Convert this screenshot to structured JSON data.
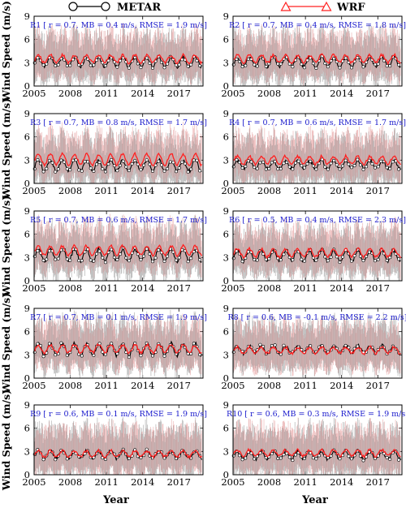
{
  "legend": {
    "metar_label": "METAR",
    "wrf_label": "WRF",
    "metar_color": "#000000",
    "wrf_color": "#ff2020"
  },
  "axes": {
    "xlabel": "Year",
    "ylabel": "Wind Speed (m/s)",
    "xticks": [
      "2005",
      "2008",
      "2011",
      "2014",
      "2017"
    ],
    "yticks": [
      "0",
      "3",
      "6",
      "9"
    ]
  },
  "chart_data": [
    {
      "type": "line",
      "panel": "R1",
      "annotation": "R1 [ r = 0.7, MB = 0.4 m/s, RMSE = 1.9 m/s]",
      "xlim": [
        2005,
        2019
      ],
      "ylim": [
        0,
        9
      ],
      "series": [
        {
          "name": "METAR",
          "mean": 3.1,
          "amplitude": 0.6
        },
        {
          "name": "WRF",
          "mean": 3.5,
          "amplitude": 0.5
        }
      ]
    },
    {
      "type": "line",
      "panel": "R2",
      "annotation": "R2 [ r = 0.7, MB = 0.4 m/s, RMSE = 1.8 m/s]",
      "xlim": [
        2005,
        2019
      ],
      "ylim": [
        0,
        9
      ],
      "series": [
        {
          "name": "METAR",
          "mean": 3.1,
          "amplitude": 0.6
        },
        {
          "name": "WRF",
          "mean": 3.5,
          "amplitude": 0.5
        }
      ]
    },
    {
      "type": "line",
      "panel": "R3",
      "annotation": "R3 [ r = 0.7, MB = 0.8 m/s, RMSE = 1.7 m/s]",
      "xlim": [
        2005,
        2019
      ],
      "ylim": [
        0,
        9
      ],
      "series": [
        {
          "name": "METAR",
          "mean": 2.3,
          "amplitude": 0.7
        },
        {
          "name": "WRF",
          "mean": 3.1,
          "amplitude": 0.7
        }
      ]
    },
    {
      "type": "line",
      "panel": "R4",
      "annotation": "R4 [ r = 0.7, MB = 0.6 m/s, RMSE = 1.7 m/s]",
      "xlim": [
        2005,
        2019
      ],
      "ylim": [
        0,
        9
      ],
      "series": [
        {
          "name": "METAR",
          "mean": 2.4,
          "amplitude": 0.5
        },
        {
          "name": "WRF",
          "mean": 3.0,
          "amplitude": 0.5
        }
      ]
    },
    {
      "type": "line",
      "panel": "R5",
      "annotation": "R5 [ r = 0.7, MB = 0.6 m/s, RMSE = 1.7 m/s]",
      "xlim": [
        2005,
        2019
      ],
      "ylim": [
        0,
        9
      ],
      "series": [
        {
          "name": "METAR",
          "mean": 3.3,
          "amplitude": 0.8
        },
        {
          "name": "WRF",
          "mean": 3.9,
          "amplitude": 0.6
        }
      ]
    },
    {
      "type": "line",
      "panel": "R6",
      "annotation": "R6 [ r = 0.5, MB = 0.4 m/s, RMSE = 2.3 m/s]",
      "xlim": [
        2005,
        2019
      ],
      "ylim": [
        0,
        9
      ],
      "series": [
        {
          "name": "METAR",
          "mean": 3.2,
          "amplitude": 0.7
        },
        {
          "name": "WRF",
          "mean": 3.6,
          "amplitude": 0.5
        }
      ]
    },
    {
      "type": "line",
      "panel": "R7",
      "annotation": "R7 [ r = 0.7, MB = 0.1 m/s, RMSE = 1.9 m/s]",
      "xlim": [
        2005,
        2019
      ],
      "ylim": [
        0,
        9
      ],
      "series": [
        {
          "name": "METAR",
          "mean": 3.7,
          "amplitude": 0.8
        },
        {
          "name": "WRF",
          "mean": 3.8,
          "amplitude": 0.5
        }
      ]
    },
    {
      "type": "line",
      "panel": "R8",
      "annotation": "R8 [ r = 0.6, MB = -0.1 m/s, RMSE = 2.2 m/s]",
      "xlim": [
        2005,
        2019
      ],
      "ylim": [
        0,
        9
      ],
      "series": [
        {
          "name": "METAR",
          "mean": 3.7,
          "amplitude": 0.5
        },
        {
          "name": "WRF",
          "mean": 3.6,
          "amplitude": 0.4
        }
      ]
    },
    {
      "type": "line",
      "panel": "R9",
      "annotation": "R9 [ r = 0.6, MB = 0.1 m/s, RMSE = 1.9 m/s]",
      "xlim": [
        2005,
        2019
      ],
      "ylim": [
        0,
        9
      ],
      "series": [
        {
          "name": "METAR",
          "mean": 2.6,
          "amplitude": 0.5
        },
        {
          "name": "WRF",
          "mean": 2.7,
          "amplitude": 0.4
        }
      ]
    },
    {
      "type": "line",
      "panel": "R10",
      "annotation": "R10 [ r = 0.6, MB = 0.3 m/s, RMSE = 1.9 m/s]",
      "xlim": [
        2005,
        2019
      ],
      "ylim": [
        0,
        9
      ],
      "series": [
        {
          "name": "METAR",
          "mean": 2.5,
          "amplitude": 0.5
        },
        {
          "name": "WRF",
          "mean": 2.8,
          "amplitude": 0.4
        }
      ]
    }
  ]
}
